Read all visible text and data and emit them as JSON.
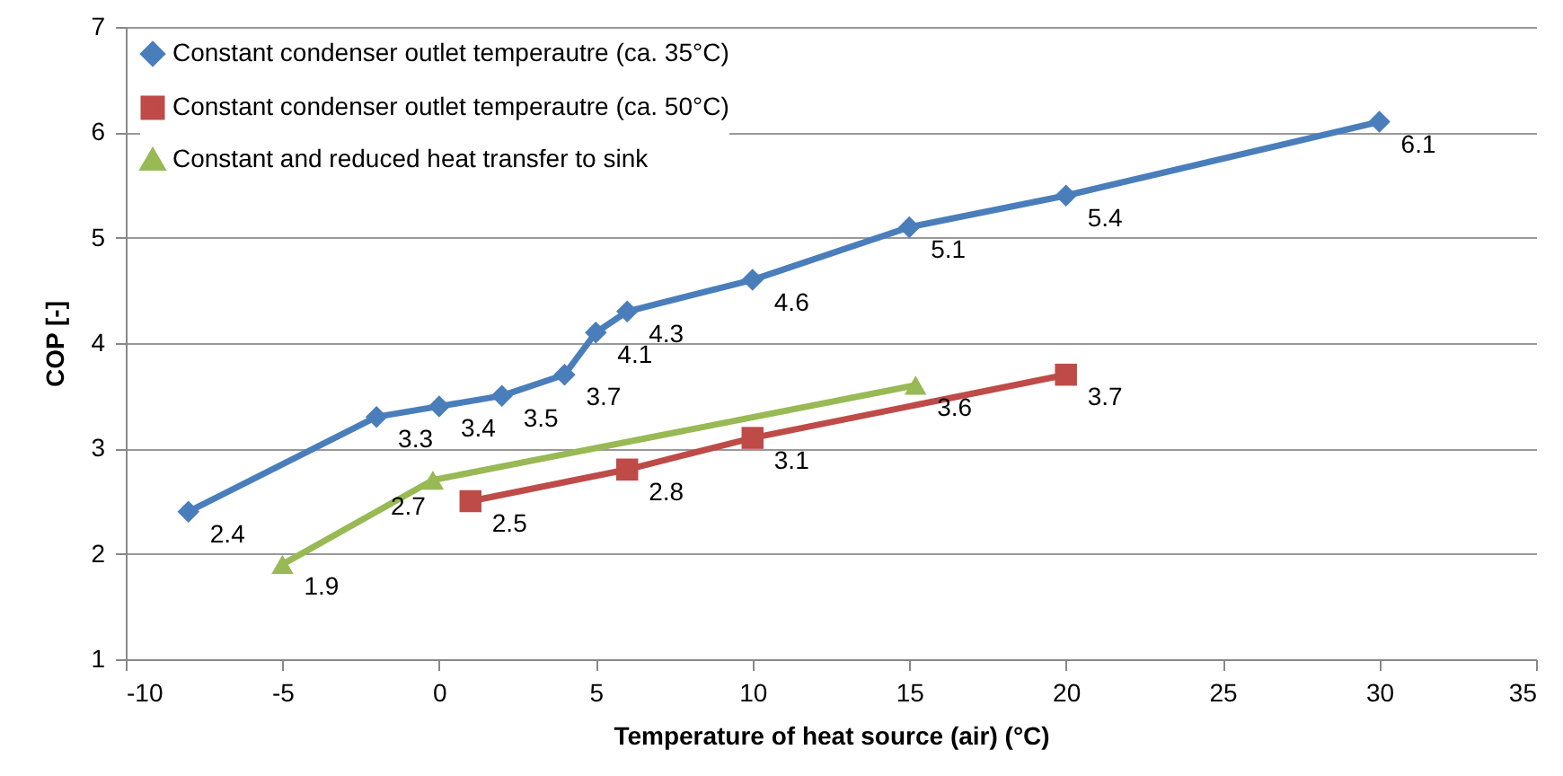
{
  "chart_data": {
    "type": "line",
    "xlabel": "Temperature of heat source (air) (°C)",
    "ylabel": "COP [-]",
    "xlim": [
      -10,
      35
    ],
    "xticks": [
      -10,
      -5,
      0,
      5,
      10,
      15,
      20,
      25,
      30,
      35
    ],
    "ylim": [
      1,
      7
    ],
    "yticks": [
      1,
      2,
      3,
      4,
      5,
      6,
      7
    ],
    "grid": "y",
    "legend": "top left",
    "data_labels": true,
    "series": [
      {
        "name": "Constant condenser outlet temperautre (ca. 35°C)",
        "color": "#4a7ebb",
        "marker": "diamond",
        "x": [
          -8,
          -2,
          0,
          2,
          4,
          5,
          6,
          10,
          15,
          20,
          30
        ],
        "values": [
          2.4,
          3.3,
          3.4,
          3.5,
          3.7,
          4.1,
          4.3,
          4.6,
          5.1,
          5.4,
          6.1
        ]
      },
      {
        "name": "Constant condenser outlet temperautre (ca. 50°C)",
        "color": "#be4b48",
        "marker": "square",
        "x": [
          1,
          6,
          10,
          20
        ],
        "values": [
          2.5,
          2.8,
          3.1,
          3.7
        ]
      },
      {
        "name": "Constant and reduced heat transfer to sink",
        "color": "#98b954",
        "marker": "triangle",
        "x": [
          -5,
          -0.2,
          15.2
        ],
        "values": [
          1.9,
          2.7,
          3.6
        ]
      }
    ]
  }
}
